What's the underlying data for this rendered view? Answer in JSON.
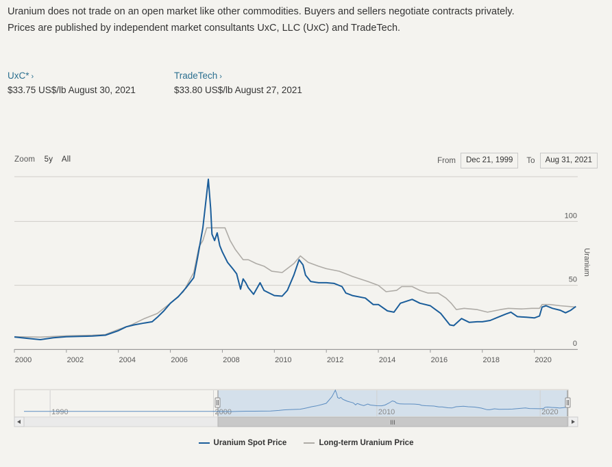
{
  "intro": {
    "line1": "Uranium does not trade on an open market like other commodities. Buyers and sellers negotiate contracts privately.",
    "line2": "Prices are published by independent market consultants UxC, LLC (UxC) and TradeTech."
  },
  "prices": [
    {
      "source": "UxC*",
      "value": "$33.75 US$/lb August 30, 2021"
    },
    {
      "source": "TradeTech",
      "value": "$33.80 US$/lb August 27, 2021"
    }
  ],
  "zoom": {
    "label": "Zoom",
    "options": [
      "5y",
      "All"
    ]
  },
  "range": {
    "from_label": "From",
    "from_value": "Dec 21, 1999",
    "to_label": "To",
    "to_value": "Aug 31, 2021"
  },
  "colors": {
    "spot": "#1a5d9a",
    "longterm": "#aeaba6",
    "grid": "#cfcdc8",
    "navigator_fill": "#c9d9ea"
  },
  "chart_data": {
    "type": "line",
    "ylabel": "Uranium",
    "ylim": [
      0,
      135
    ],
    "yticks": [
      0,
      50,
      100
    ],
    "xlim": [
      2000,
      2021.67
    ],
    "xticks": [
      "2000",
      "2002",
      "2004",
      "2006",
      "2008",
      "2010",
      "2012",
      "2014",
      "2016",
      "2018",
      "2020"
    ],
    "legend_position": "bottom",
    "series": [
      {
        "name": "Uranium Spot Price",
        "points": [
          [
            2000.0,
            9.6
          ],
          [
            2000.5,
            8.5
          ],
          [
            2001.0,
            7.5
          ],
          [
            2001.5,
            9.0
          ],
          [
            2002.0,
            9.8
          ],
          [
            2002.5,
            10.0
          ],
          [
            2003.0,
            10.3
          ],
          [
            2003.5,
            11.0
          ],
          [
            2004.0,
            14.5
          ],
          [
            2004.3,
            17.5
          ],
          [
            2004.6,
            19.0
          ],
          [
            2005.0,
            20.5
          ],
          [
            2005.3,
            21.5
          ],
          [
            2005.5,
            25.0
          ],
          [
            2005.75,
            30.0
          ],
          [
            2006.0,
            36.0
          ],
          [
            2006.3,
            41.0
          ],
          [
            2006.6,
            48.0
          ],
          [
            2006.9,
            56.0
          ],
          [
            2007.05,
            72.0
          ],
          [
            2007.25,
            95.0
          ],
          [
            2007.35,
            113.0
          ],
          [
            2007.46,
            133.0
          ],
          [
            2007.55,
            110.0
          ],
          [
            2007.6,
            90.0
          ],
          [
            2007.7,
            85.0
          ],
          [
            2007.8,
            91.0
          ],
          [
            2007.9,
            81.0
          ],
          [
            2008.0,
            76.0
          ],
          [
            2008.2,
            68.0
          ],
          [
            2008.4,
            63.0
          ],
          [
            2008.55,
            59.0
          ],
          [
            2008.7,
            47.0
          ],
          [
            2008.8,
            55.0
          ],
          [
            2008.9,
            52.0
          ],
          [
            2009.0,
            48.0
          ],
          [
            2009.2,
            43.0
          ],
          [
            2009.45,
            52.0
          ],
          [
            2009.6,
            46.0
          ],
          [
            2009.8,
            44.0
          ],
          [
            2010.0,
            42.0
          ],
          [
            2010.3,
            41.5
          ],
          [
            2010.5,
            46.0
          ],
          [
            2010.75,
            58.0
          ],
          [
            2010.95,
            70.0
          ],
          [
            2011.1,
            66.0
          ],
          [
            2011.2,
            58.0
          ],
          [
            2011.4,
            53.0
          ],
          [
            2011.7,
            52.0
          ],
          [
            2012.0,
            52.0
          ],
          [
            2012.3,
            51.5
          ],
          [
            2012.6,
            49.0
          ],
          [
            2012.75,
            44.0
          ],
          [
            2013.0,
            42.0
          ],
          [
            2013.5,
            40.0
          ],
          [
            2013.8,
            35.0
          ],
          [
            2014.0,
            35.0
          ],
          [
            2014.35,
            30.0
          ],
          [
            2014.6,
            29.0
          ],
          [
            2014.85,
            36.0
          ],
          [
            2015.0,
            37.0
          ],
          [
            2015.3,
            39.0
          ],
          [
            2015.6,
            36.0
          ],
          [
            2016.0,
            34.0
          ],
          [
            2016.4,
            28.0
          ],
          [
            2016.75,
            19.0
          ],
          [
            2016.9,
            18.5
          ],
          [
            2017.2,
            24.0
          ],
          [
            2017.5,
            21.0
          ],
          [
            2017.8,
            21.5
          ],
          [
            2018.0,
            21.5
          ],
          [
            2018.3,
            22.5
          ],
          [
            2018.6,
            25.0
          ],
          [
            2018.9,
            27.5
          ],
          [
            2019.1,
            29.0
          ],
          [
            2019.35,
            25.5
          ],
          [
            2019.7,
            25.0
          ],
          [
            2020.0,
            24.5
          ],
          [
            2020.2,
            26.0
          ],
          [
            2020.3,
            33.0
          ],
          [
            2020.45,
            34.0
          ],
          [
            2020.7,
            32.0
          ],
          [
            2021.0,
            30.5
          ],
          [
            2021.2,
            28.5
          ],
          [
            2021.4,
            30.5
          ],
          [
            2021.6,
            33.5
          ]
        ]
      },
      {
        "name": "Long-term Uranium Price",
        "points": [
          [
            2000.0,
            9.8
          ],
          [
            2001.0,
            9.5
          ],
          [
            2002.0,
            10.5
          ],
          [
            2003.0,
            11.0
          ],
          [
            2003.5,
            11.5
          ],
          [
            2004.0,
            15.5
          ],
          [
            2004.5,
            19.0
          ],
          [
            2005.0,
            24.0
          ],
          [
            2005.5,
            28.0
          ],
          [
            2006.0,
            36.0
          ],
          [
            2006.5,
            45.0
          ],
          [
            2006.9,
            60.0
          ],
          [
            2007.1,
            80.0
          ],
          [
            2007.25,
            85.0
          ],
          [
            2007.4,
            95.0
          ],
          [
            2007.6,
            95.0
          ],
          [
            2007.9,
            95.0
          ],
          [
            2008.1,
            95.0
          ],
          [
            2008.3,
            85.0
          ],
          [
            2008.5,
            78.0
          ],
          [
            2008.8,
            70.0
          ],
          [
            2009.0,
            70.0
          ],
          [
            2009.3,
            67.0
          ],
          [
            2009.6,
            65.0
          ],
          [
            2009.9,
            61.0
          ],
          [
            2010.3,
            60.0
          ],
          [
            2010.75,
            67.0
          ],
          [
            2011.0,
            73.0
          ],
          [
            2011.3,
            68.0
          ],
          [
            2011.7,
            65.0
          ],
          [
            2012.0,
            63.0
          ],
          [
            2012.5,
            61.0
          ],
          [
            2013.0,
            57.0
          ],
          [
            2013.6,
            53.0
          ],
          [
            2014.0,
            50.0
          ],
          [
            2014.3,
            45.0
          ],
          [
            2014.7,
            46.0
          ],
          [
            2014.9,
            49.0
          ],
          [
            2015.3,
            49.0
          ],
          [
            2015.6,
            46.0
          ],
          [
            2015.9,
            44.0
          ],
          [
            2016.3,
            44.0
          ],
          [
            2016.6,
            40.0
          ],
          [
            2016.8,
            36.0
          ],
          [
            2017.0,
            31.0
          ],
          [
            2017.3,
            32.0
          ],
          [
            2017.8,
            31.0
          ],
          [
            2018.2,
            29.0
          ],
          [
            2018.7,
            31.0
          ],
          [
            2019.0,
            32.0
          ],
          [
            2019.5,
            31.5
          ],
          [
            2019.9,
            32.0
          ],
          [
            2020.2,
            32.0
          ],
          [
            2020.3,
            35.0
          ],
          [
            2020.6,
            35.0
          ],
          [
            2021.0,
            34.0
          ],
          [
            2021.6,
            33.0
          ]
        ]
      }
    ],
    "navigator": {
      "ticks": [
        "1990",
        "2000",
        "2010",
        "2020"
      ],
      "scroll_grip": "III"
    }
  }
}
